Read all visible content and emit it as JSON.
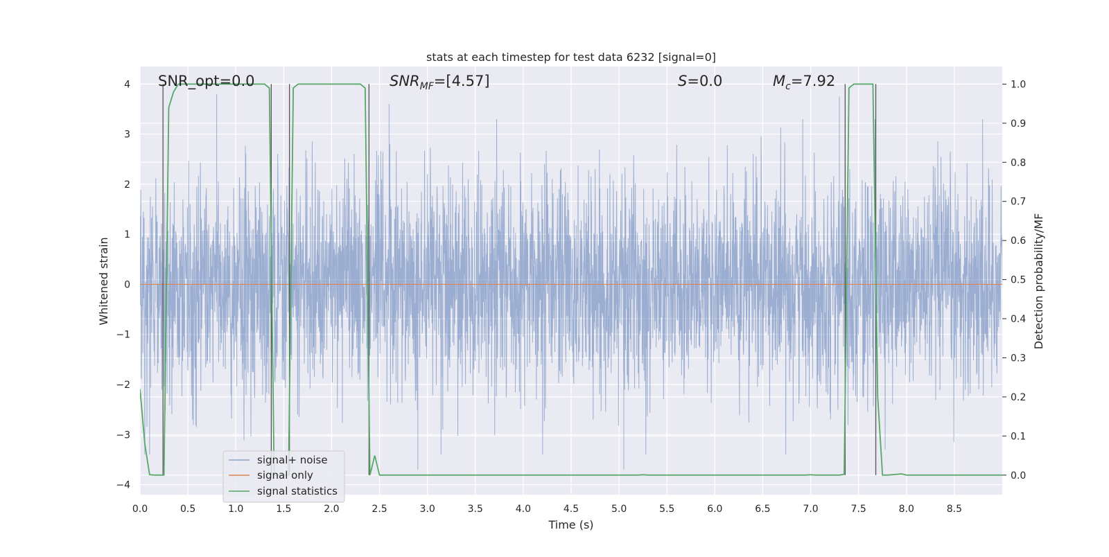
{
  "chart_data": {
    "type": "line",
    "title": "stats at each timestep for test data 6232 [signal=0]",
    "xlabel": "Time (s)",
    "ylabel_left": "Whitened strain",
    "ylabel_right": "Detection probability/MF",
    "xlim": [
      0.0,
      9.0
    ],
    "ylim_left": [
      -4.2,
      4.35
    ],
    "ylim_right": [
      -0.05,
      1.045
    ],
    "xticks": [
      0.0,
      0.5,
      1.0,
      1.5,
      2.0,
      2.5,
      3.0,
      3.5,
      4.0,
      4.5,
      5.0,
      5.5,
      6.0,
      6.5,
      7.0,
      7.5,
      8.0,
      8.5
    ],
    "xtick_labels": [
      "0.0",
      "0.5",
      "1.0",
      "1.5",
      "2.0",
      "2.5",
      "3.0",
      "3.5",
      "4.0",
      "4.5",
      "5.0",
      "5.5",
      "6.0",
      "6.5",
      "7.0",
      "7.5",
      "8.0",
      "8.5"
    ],
    "yticks_left": [
      -4,
      -3,
      -2,
      -1,
      0,
      1,
      2,
      3,
      4
    ],
    "ytick_labels_left": [
      "−4",
      "−3",
      "−2",
      "−1",
      "0",
      "1",
      "2",
      "3",
      "4"
    ],
    "yticks_right": [
      0.0,
      0.1,
      0.2,
      0.3,
      0.4,
      0.5,
      0.6,
      0.7,
      0.8,
      0.9,
      1.0
    ],
    "ytick_labels_right": [
      "0.0",
      "0.1",
      "0.2",
      "0.3",
      "0.4",
      "0.5",
      "0.6",
      "0.7",
      "0.8",
      "0.9",
      "1.0"
    ],
    "grid": true,
    "legend_position": "lower-left",
    "annotations": {
      "snr_opt": "SNR_opt=0.0",
      "snr_mf_main": "SNR",
      "snr_mf_sub": "MF",
      "snr_mf_value": "=[4.57]",
      "s_main": "S",
      "s_value": "=0.0",
      "mc_main": "M",
      "mc_sub": "c",
      "mc_value": "=7.92"
    },
    "series": [
      {
        "name": "signal+ noise",
        "color": "#4c72b0",
        "axis": "left",
        "description": "whitened noisy strain sampled across 0-9 s, amplitude roughly within -3.7..3.6",
        "extreme_points": [
          {
            "x": 0.8,
            "y": 3.8
          },
          {
            "x": 2.6,
            "y": 3.6
          },
          {
            "x": 7.3,
            "y": 3.75
          },
          {
            "x": 2.9,
            "y": -3.7
          },
          {
            "x": 5.05,
            "y": -3.7
          },
          {
            "x": 0.1,
            "y": -3.4
          }
        ]
      },
      {
        "name": "signal only",
        "color": "#dd8452",
        "axis": "left",
        "x": [
          0.0,
          9.0
        ],
        "y": [
          0.0,
          0.0
        ]
      },
      {
        "name": "signal statistics",
        "color": "#55a868",
        "axis": "right",
        "x": [
          0.0,
          0.05,
          0.1,
          0.15,
          0.2,
          0.25,
          0.3,
          0.35,
          0.4,
          0.45,
          1.3,
          1.35,
          1.4,
          1.45,
          1.5,
          1.55,
          1.6,
          1.65,
          1.7,
          2.3,
          2.35,
          2.4,
          2.45,
          2.5,
          5.2,
          5.25,
          5.3,
          6.95,
          7.0,
          7.05,
          7.3,
          7.35,
          7.4,
          7.45,
          7.5,
          7.55,
          7.65,
          7.7,
          7.75,
          7.8,
          7.85,
          7.95,
          8.0,
          9.0
        ],
        "y": [
          0.22,
          0.08,
          0.001,
          0.0,
          0.0,
          0.0,
          0.94,
          0.98,
          1.0,
          1.0,
          1.0,
          0.99,
          0.0,
          0.0,
          0.0,
          0.0,
          0.99,
          1.0,
          1.0,
          1.0,
          0.99,
          0.0,
          0.05,
          0.0,
          0.0,
          0.001,
          0.0,
          0.0,
          0.001,
          0.0,
          0.0,
          0.002,
          0.99,
          1.0,
          1.0,
          1.0,
          1.0,
          0.2,
          0.0,
          0.0,
          0.001,
          0.003,
          0.0,
          0.0
        ]
      }
    ],
    "vertical_lines_x": [
      0.24,
      1.37,
      1.56,
      2.39,
      7.36,
      7.68
    ],
    "vertical_line_color": "#555555"
  }
}
